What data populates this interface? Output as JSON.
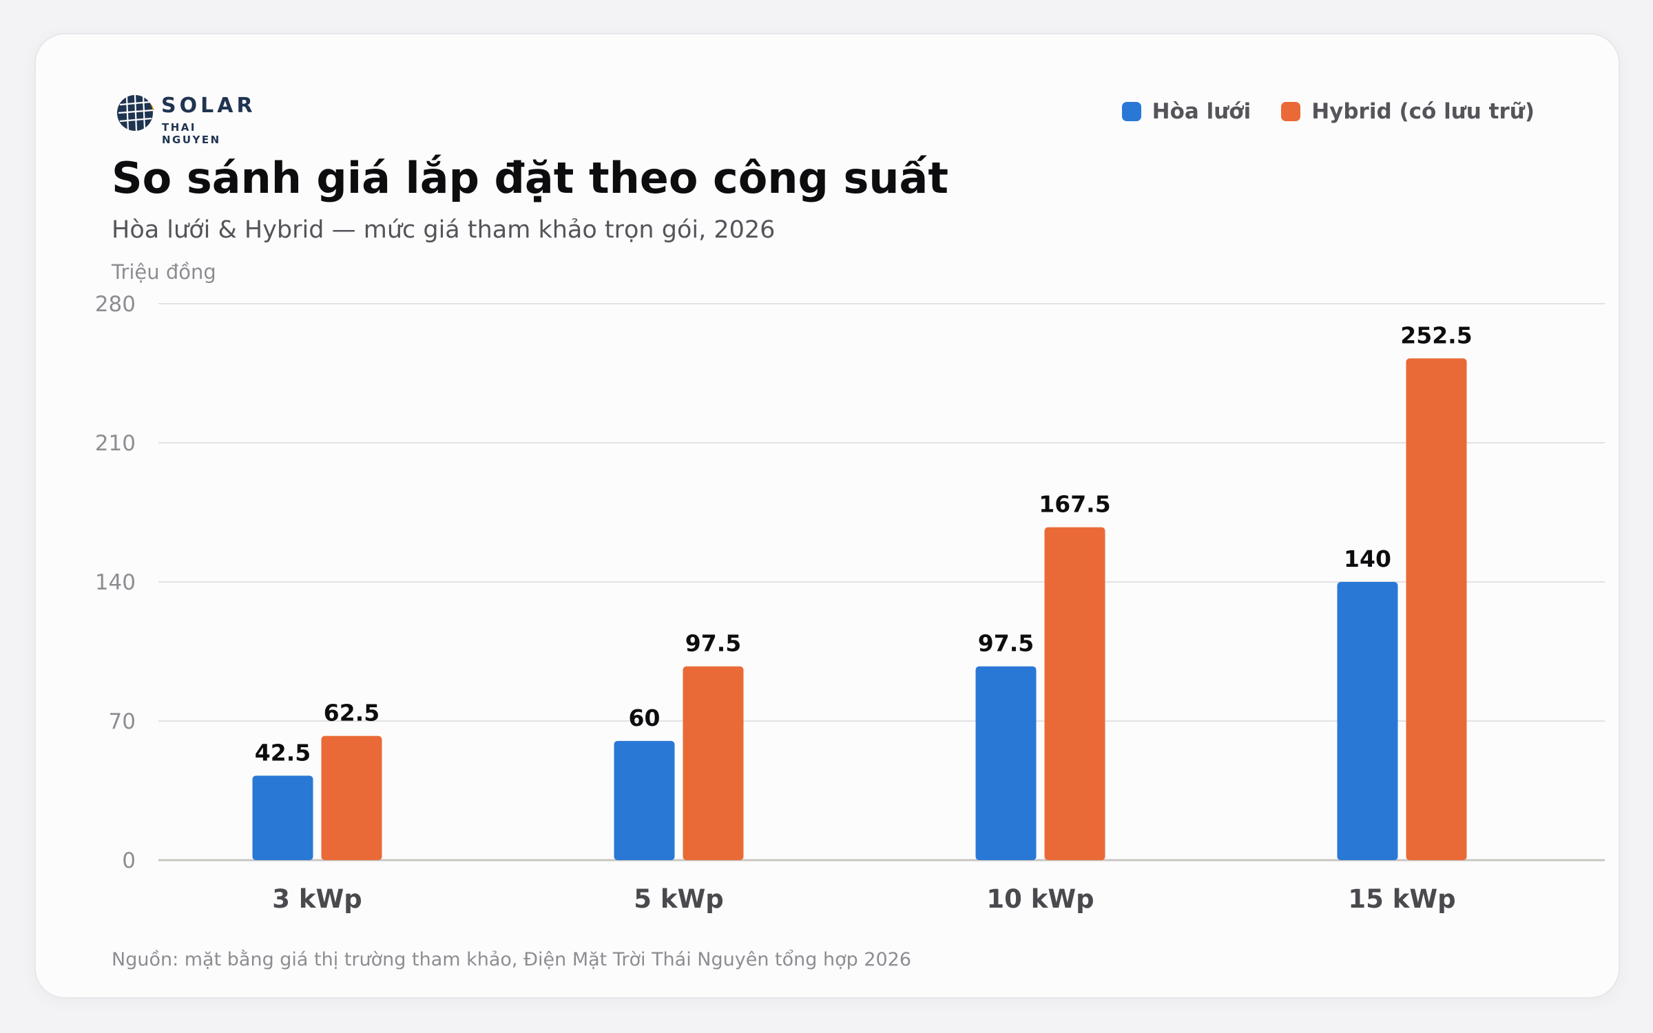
{
  "brand": {
    "name": "SOLAR",
    "tagline": "THAI NGUYEN"
  },
  "colors": {
    "series_a": "#2a78d6",
    "series_b": "#e96a36",
    "grid": "#e2e2e6",
    "axis": "#c9c6c2"
  },
  "chart_data": {
    "type": "bar",
    "title": "So sánh giá lắp đặt theo công suất",
    "subtitle": "Hòa lưới & Hybrid — mức giá tham khảo trọn gói, 2026",
    "ylabel": "Triệu đồng",
    "xlabel": "",
    "categories": [
      "3 kWp",
      "5 kWp",
      "10 kWp",
      "15 kWp"
    ],
    "series": [
      {
        "name": "Hòa lưới",
        "values": [
          42.5,
          60,
          97.5,
          140
        ]
      },
      {
        "name": "Hybrid (có lưu trữ)",
        "values": [
          62.5,
          97.5,
          167.5,
          252.5
        ]
      }
    ],
    "yticks": [
      0,
      70,
      140,
      210,
      280
    ],
    "ylim": [
      0,
      280
    ],
    "grid": true,
    "legend_position": "top-right",
    "source": "Nguồn: mặt bằng giá thị trường tham khảo, Điện Mặt Trời Thái Nguyên tổng hợp 2026"
  }
}
